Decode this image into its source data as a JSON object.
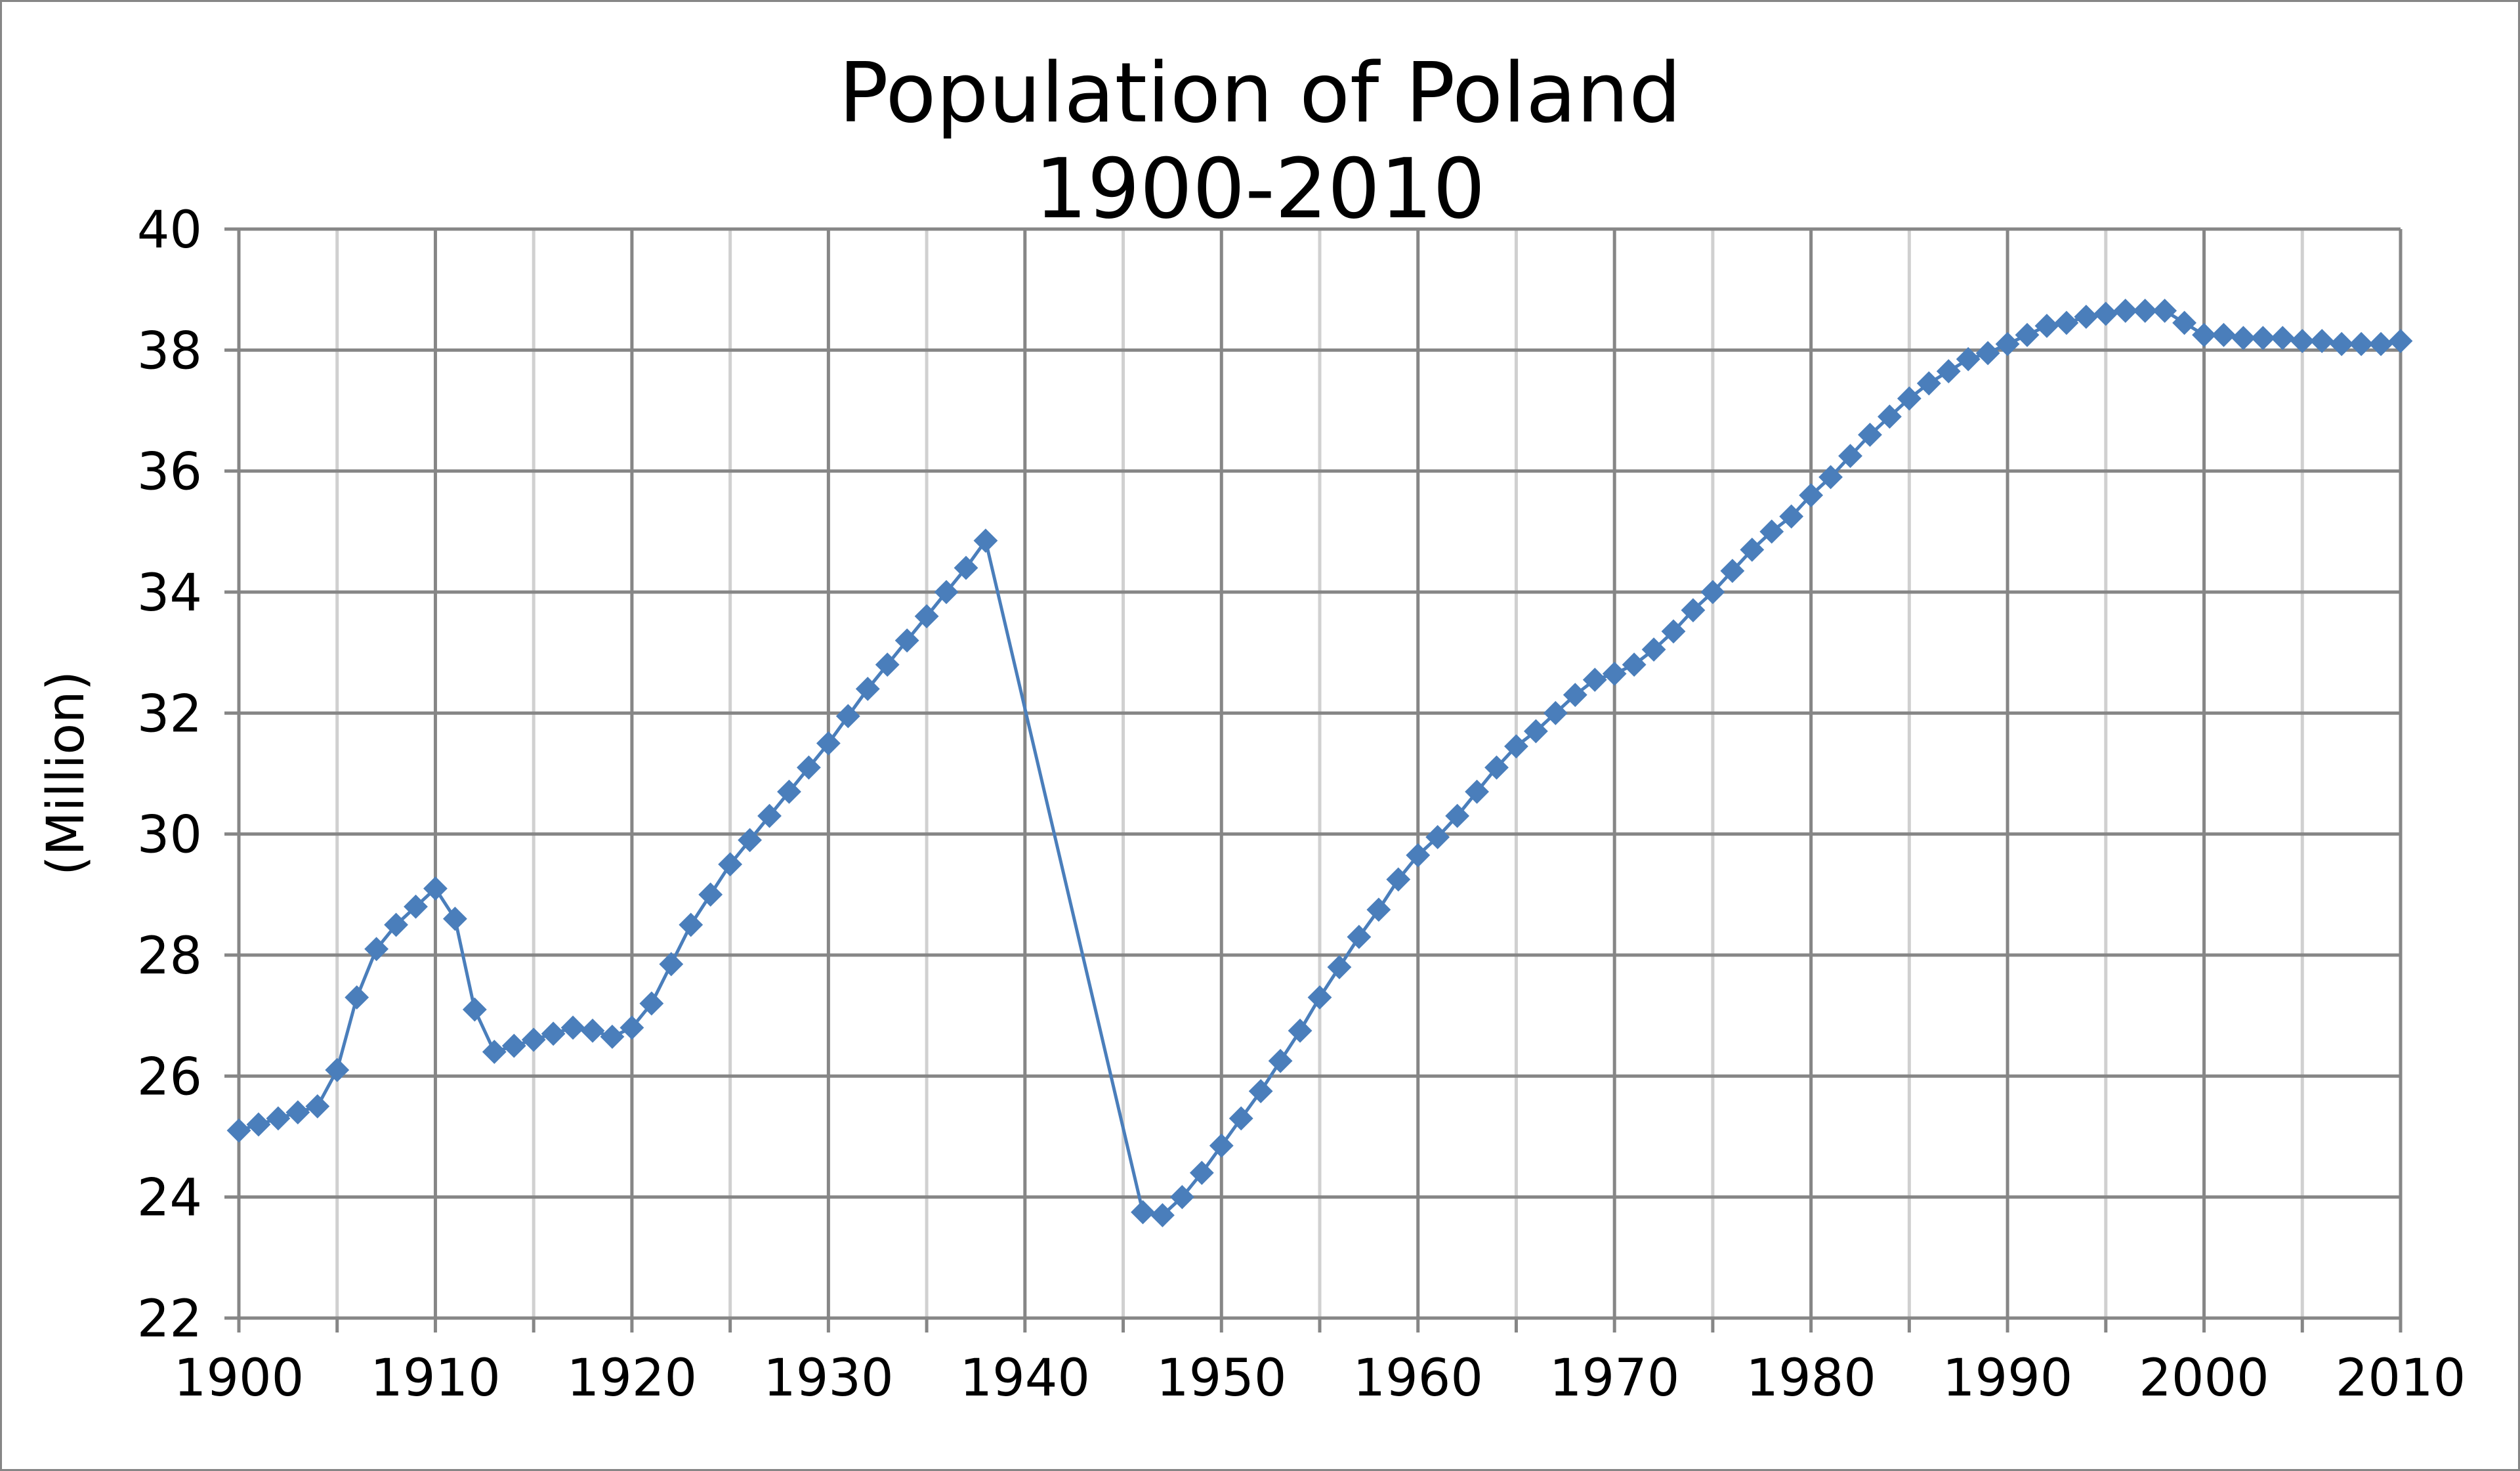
{
  "chart_data": {
    "type": "line",
    "title_lines": [
      "Population of Poland",
      "1900-2010"
    ],
    "xlabel": "",
    "ylabel": "(Million)",
    "xlim": [
      1900,
      2010
    ],
    "ylim": [
      22,
      40
    ],
    "x_ticks": [
      1900,
      1910,
      1920,
      1930,
      1940,
      1950,
      1960,
      1970,
      1980,
      1990,
      2000,
      2010
    ],
    "x_minor_ticks": [
      1905,
      1915,
      1925,
      1935,
      1945,
      1955,
      1965,
      1975,
      1985,
      1995,
      2005
    ],
    "y_ticks": [
      22,
      24,
      26,
      28,
      30,
      32,
      34,
      36,
      38,
      40
    ],
    "grid": true,
    "legend": "none",
    "colors": {
      "series": "#4a7ebb",
      "major_grid": "#868686",
      "minor_grid": "#d0d0d0",
      "frame": "#868686"
    },
    "series": [
      {
        "marker": "diamond",
        "x": [
          1900,
          1901,
          1902,
          1903,
          1904,
          1905,
          1906,
          1907,
          1908,
          1909,
          1910,
          1911,
          1912,
          1913,
          1914,
          1915,
          1916,
          1917,
          1918,
          1919,
          1920,
          1921,
          1922,
          1923,
          1924,
          1925,
          1926,
          1927,
          1928,
          1929,
          1930,
          1931,
          1932,
          1933,
          1934,
          1935,
          1936,
          1937,
          1938,
          1946,
          1947,
          1948,
          1949,
          1950,
          1951,
          1952,
          1953,
          1954,
          1955,
          1956,
          1957,
          1958,
          1959,
          1960,
          1961,
          1962,
          1963,
          1964,
          1965,
          1966,
          1967,
          1968,
          1969,
          1970,
          1971,
          1972,
          1973,
          1974,
          1975,
          1976,
          1977,
          1978,
          1979,
          1980,
          1981,
          1982,
          1983,
          1984,
          1985,
          1986,
          1987,
          1988,
          1989,
          1990,
          1991,
          1992,
          1993,
          1994,
          1995,
          1996,
          1997,
          1998,
          1999,
          2000,
          2001,
          2002,
          2003,
          2004,
          2005,
          2006,
          2007,
          2008,
          2009,
          2010
        ],
        "y": [
          25.1,
          25.2,
          25.3,
          25.4,
          25.5,
          26.1,
          27.3,
          28.1,
          28.5,
          28.8,
          29.1,
          28.6,
          27.1,
          26.4,
          26.5,
          26.6,
          26.7,
          26.8,
          26.75,
          26.65,
          26.8,
          27.2,
          27.85,
          28.5,
          29.0,
          29.5,
          29.9,
          30.3,
          30.7,
          31.1,
          31.5,
          31.95,
          32.4,
          32.8,
          33.2,
          33.6,
          34.0,
          34.4,
          34.85,
          23.75,
          23.7,
          24.0,
          24.4,
          24.85,
          25.3,
          25.75,
          26.25,
          26.75,
          27.3,
          27.8,
          28.3,
          28.75,
          29.25,
          29.65,
          29.95,
          30.3,
          30.7,
          31.1,
          31.45,
          31.7,
          32.0,
          32.3,
          32.55,
          32.65,
          32.8,
          33.05,
          33.35,
          33.7,
          34.0,
          34.35,
          34.7,
          35.0,
          35.25,
          35.6,
          35.9,
          36.25,
          36.6,
          36.9,
          37.2,
          37.45,
          37.65,
          37.85,
          37.95,
          38.1,
          38.25,
          38.4,
          38.45,
          38.55,
          38.6,
          38.65,
          38.65,
          38.65,
          38.45,
          38.25,
          38.25,
          38.2,
          38.2,
          38.2,
          38.15,
          38.15,
          38.1,
          38.1,
          38.1,
          38.15
        ]
      }
    ]
  }
}
